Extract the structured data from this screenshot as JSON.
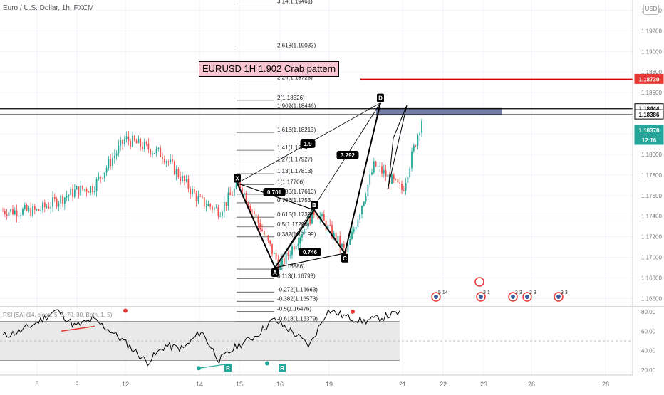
{
  "header": {
    "symbol_title": "Euro / U.S. Dollar, 1h, FXCM",
    "currency_badge": "USD"
  },
  "annotation": {
    "title": "EURUSD 1H 1.902 Crab pattern"
  },
  "price_axis": {
    "labels": [
      "1.19400",
      "1.19200",
      "1.19000",
      "1.18800",
      "1.18600",
      "1.18400",
      "1.18200",
      "1.18000",
      "1.17800",
      "1.17600",
      "1.17400",
      "1.17200",
      "1.17000",
      "1.16800",
      "1.16600"
    ]
  },
  "price_tags": [
    {
      "text": "1.18730",
      "bg": "#e53935",
      "fg": "#ffffff",
      "border": "#e53935"
    },
    {
      "text": "1.18444",
      "bg": "#ffffff",
      "fg": "#000000",
      "border": "#000000"
    },
    {
      "text": "1.18386",
      "bg": "#ffffff",
      "fg": "#000000",
      "border": "#000000"
    },
    {
      "text": "1.18378",
      "bg": "#26a69a",
      "fg": "#ffffff",
      "border": "#26a69a"
    },
    {
      "text": "12:16",
      "bg": "#26a69a",
      "fg": "#ffffff",
      "border": "#26a69a"
    }
  ],
  "fib_levels": [
    {
      "label": "3.14(1.19461)"
    },
    {
      "label": "2.618(1.19033)"
    },
    {
      "label": "2.24(1.18723)"
    },
    {
      "label": "2(1.18526)"
    },
    {
      "label": "1.902(1.18446)"
    },
    {
      "label": "1.618(1.18213)"
    },
    {
      "label": "1.41(1.1804"
    },
    {
      "label": "1.27(1.17927)"
    },
    {
      "label": "1.13(1.17813)"
    },
    {
      "label": "1(1.17706)"
    },
    {
      "label": "0.886(1.17613)"
    },
    {
      "label": "0.786(1.1753"
    },
    {
      "label": "0.618(1.1739"
    },
    {
      "label": "0.5(1.17296)"
    },
    {
      "label": "0.382(1.17199)"
    },
    {
      "label": "0(1.16886)"
    },
    {
      "label": "0.113(1.16793)"
    },
    {
      "label": "-0.272(1.16663)"
    },
    {
      "label": "-0.382(1.16573)"
    },
    {
      "label": "-0.5(1.16476)"
    },
    {
      "label": "-0.618(1.16379)"
    }
  ],
  "pattern": {
    "points": [
      {
        "label": "X",
        "price": 1.1772
      },
      {
        "label": "A",
        "price": 1.169
      },
      {
        "label": "B",
        "price": 1.1746
      },
      {
        "label": "C",
        "price": 1.1704
      },
      {
        "label": "D",
        "price": 1.185
      }
    ],
    "ratios": [
      "0.701",
      "0.746",
      "1.9",
      "3.292"
    ]
  },
  "events": [
    {
      "label": "5 14"
    },
    {
      "label": "3 1"
    },
    {
      "label": "3 3"
    },
    {
      "label": "3 3"
    },
    {
      "label": "3 3"
    }
  ],
  "rsi": {
    "label": "RSI [SA] (14, close, 5, 5, 70, 30, Both, 1, 5)",
    "axis_labels": [
      "80.00",
      "60.00",
      "40.00",
      "20.00"
    ],
    "markers": [
      "R",
      "R",
      "R"
    ]
  },
  "time_axis": {
    "labels": [
      "8",
      "9",
      "12",
      "14",
      "15",
      "16",
      "19",
      "21",
      "22",
      "23",
      "26",
      "28"
    ]
  },
  "colors": {
    "up": "#26a69a",
    "down": "#ef5350",
    "pattern": "#000000",
    "zone": "#5c6694",
    "resistance": "#d50000"
  },
  "chart_data": {
    "type": "candlestick",
    "title": "Euro / U.S. Dollar, 1h, FXCM",
    "ylim": [
      1.1652,
      1.195
    ],
    "anchors": [
      {
        "date": "8",
        "price": 1.1745
      },
      {
        "date": "9",
        "price": 1.1765
      },
      {
        "date": "10",
        "price": 1.1768
      },
      {
        "date": "12",
        "price": 1.1815
      },
      {
        "date": "13",
        "price": 1.18
      },
      {
        "date": "14",
        "price": 1.1755
      },
      {
        "date": "14.5",
        "price": 1.1745
      },
      {
        "date": "15",
        "price": 1.1772
      },
      {
        "date": "16",
        "price": 1.169
      },
      {
        "date": "18",
        "price": 1.1746
      },
      {
        "date": "20",
        "price": 1.1704
      },
      {
        "date": "20.5",
        "price": 1.179
      },
      {
        "date": "21",
        "price": 1.1765
      },
      {
        "date": "21.5",
        "price": 1.1838
      }
    ],
    "horizontal_lines": [
      1.1873,
      1.18444,
      1.18386
    ],
    "rsi_ylim": [
      15,
      85
    ],
    "rsi_anchors": [
      55,
      60,
      70,
      82,
      65,
      72,
      60,
      45,
      28,
      45,
      42,
      60,
      30,
      45,
      55,
      72,
      60,
      45,
      82,
      75,
      70,
      74,
      79
    ]
  }
}
